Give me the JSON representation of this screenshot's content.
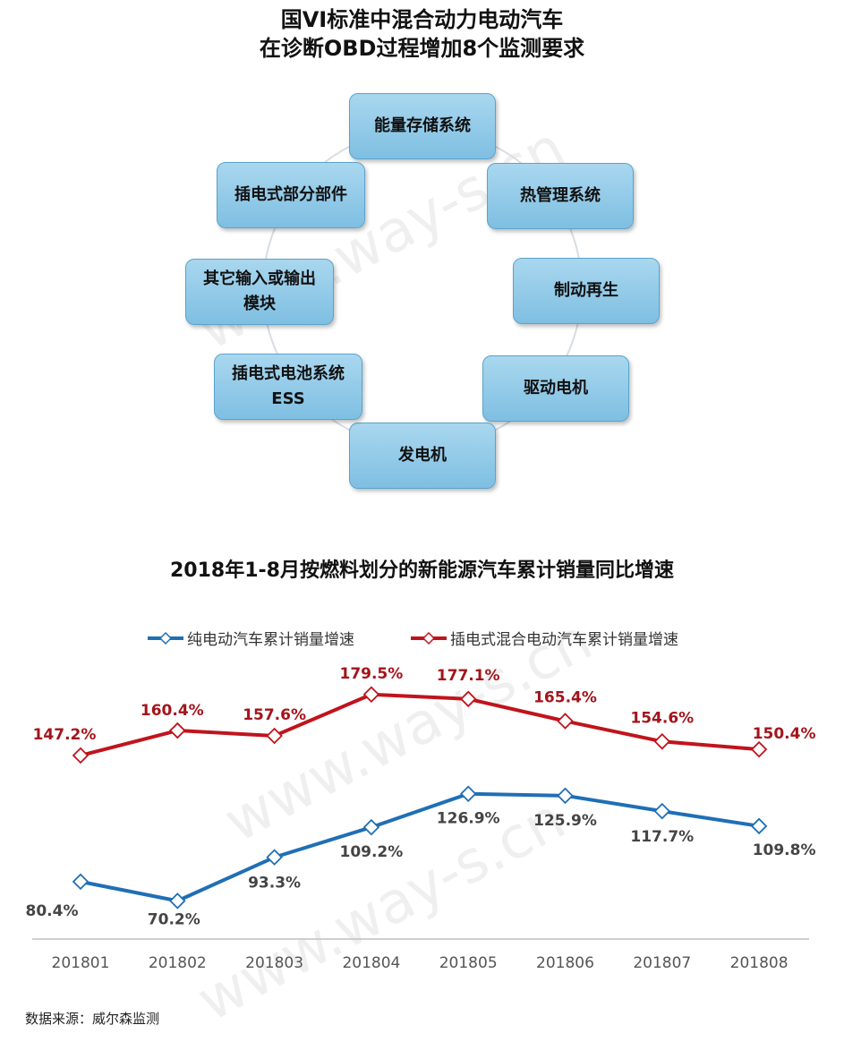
{
  "diagram": {
    "title_line1": "国VI标准中混合动力电动汽车",
    "title_line2": "在诊断OBD过程增加8个监测要求",
    "nodes": [
      {
        "line1": "能量存储系统",
        "line2": ""
      },
      {
        "line1": "热管理系统",
        "line2": ""
      },
      {
        "line1": "制动再生",
        "line2": ""
      },
      {
        "line1": "驱动电机",
        "line2": ""
      },
      {
        "line1": "发电机",
        "line2": ""
      },
      {
        "line1": "插电式电池系统",
        "line2": "ESS"
      },
      {
        "line1": "其它输入或输出",
        "line2": "模块"
      },
      {
        "line1": "插电式部分部件",
        "line2": ""
      }
    ]
  },
  "chart_data": {
    "type": "line",
    "title": "2018年1-8月按燃料划分的新能源汽车累计销量同比增速",
    "categories": [
      "201801",
      "201802",
      "201803",
      "201804",
      "201805",
      "201806",
      "201807",
      "201808"
    ],
    "series": [
      {
        "name": "纯电动汽车累计销量增速",
        "color": "#1f6fb5",
        "values": [
          80.4,
          70.2,
          93.3,
          109.2,
          126.9,
          125.9,
          117.7,
          109.8
        ],
        "labels": [
          "80.4%",
          "70.2%",
          "93.3%",
          "109.2%",
          "126.9%",
          "125.9%",
          "117.7%",
          "109.8%"
        ]
      },
      {
        "name": "插电式混合电动汽车累计销量增速",
        "color": "#c0141c",
        "values": [
          147.2,
          160.4,
          157.6,
          179.5,
          177.1,
          165.4,
          154.6,
          150.4
        ],
        "labels": [
          "147.2%",
          "160.4%",
          "157.6%",
          "179.5%",
          "177.1%",
          "165.4%",
          "154.6%",
          "150.4%"
        ]
      }
    ],
    "legend_position": "top",
    "grid": false,
    "marker": "diamond"
  },
  "source": "数据来源：威尔森监测",
  "watermark": "www.way-s.cn"
}
